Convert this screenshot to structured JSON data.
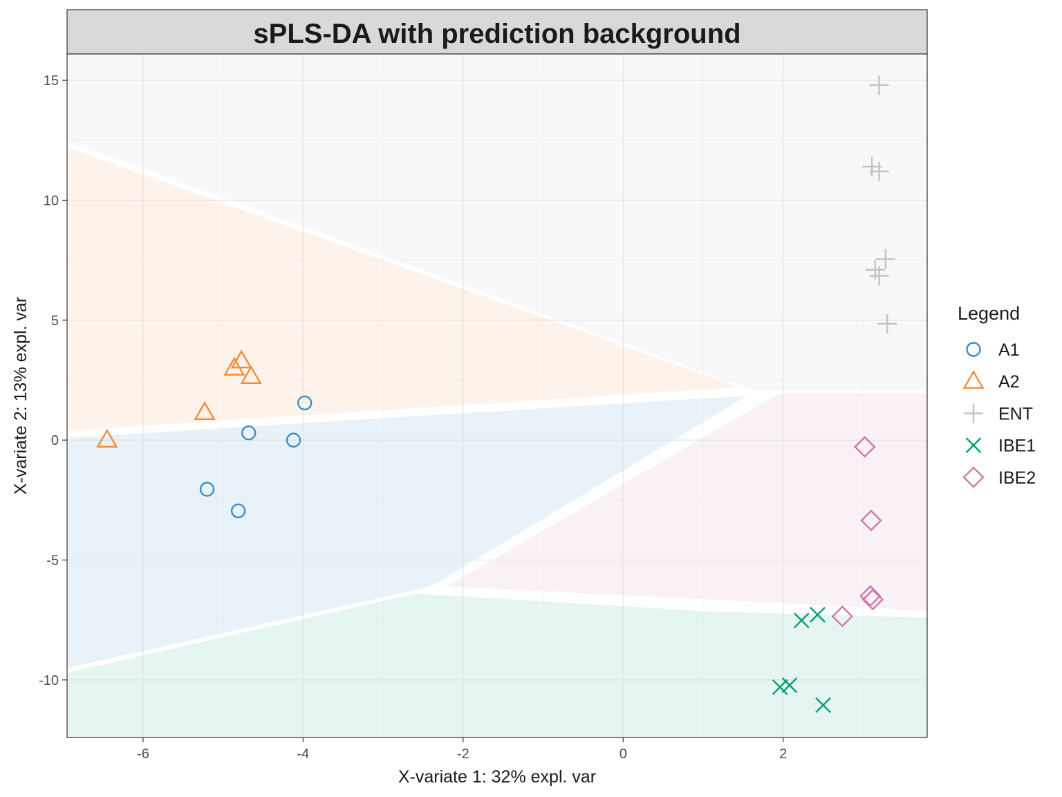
{
  "chart_data": {
    "type": "scatter",
    "title": "sPLS-DA with prediction background",
    "xlabel": "X-variate 1: 32% expl. var",
    "ylabel": "X-variate 2: 13% expl. var",
    "xlim": [
      -6.95,
      3.8
    ],
    "ylim": [
      -12.4,
      16.1
    ],
    "xticks": [
      -6,
      -4,
      -2,
      0,
      2
    ],
    "yticks": [
      -10,
      -5,
      0,
      5,
      10,
      15
    ],
    "grid": true,
    "legend": {
      "title": "Legend",
      "position": "right"
    },
    "series": [
      {
        "name": "A1",
        "shape": "circle",
        "color": "#388ECC",
        "bg": "#E9F1F9",
        "points": [
          [
            -3.98,
            1.55
          ],
          [
            -4.12,
            0.0
          ],
          [
            -4.68,
            0.3
          ],
          [
            -5.2,
            -2.05
          ],
          [
            -4.81,
            -2.95
          ]
        ]
      },
      {
        "name": "A2",
        "shape": "triangle",
        "color": "#F68B33",
        "bg": "#FEF3EA",
        "points": [
          [
            -4.77,
            3.3
          ],
          [
            -4.86,
            3.0
          ],
          [
            -4.65,
            2.65
          ],
          [
            -5.23,
            1.15
          ],
          [
            -6.45,
            0.0
          ]
        ]
      },
      {
        "name": "ENT",
        "shape": "plus",
        "color": "#C2C2C2",
        "bg": "#F8F8F8",
        "points": [
          [
            3.2,
            14.8
          ],
          [
            3.11,
            11.4
          ],
          [
            3.2,
            11.2
          ],
          [
            3.28,
            7.55
          ],
          [
            3.15,
            7.1
          ],
          [
            3.2,
            6.85
          ],
          [
            3.3,
            4.85
          ]
        ]
      },
      {
        "name": "IBE1",
        "shape": "cross",
        "color": "#009E73",
        "bg": "#E5F5F1",
        "points": [
          [
            2.43,
            -7.28
          ],
          [
            2.23,
            -7.52
          ],
          [
            2.08,
            -10.22
          ],
          [
            1.96,
            -10.3
          ],
          [
            2.5,
            -11.05
          ]
        ]
      },
      {
        "name": "IBE2",
        "shape": "diamond",
        "color": "#CC79A7",
        "bg": "#F9F1F6",
        "points": [
          [
            3.02,
            -0.28
          ],
          [
            3.1,
            -3.35
          ],
          [
            3.09,
            -6.5
          ],
          [
            3.12,
            -6.65
          ],
          [
            2.74,
            -7.35
          ]
        ]
      }
    ],
    "background_regions": [
      {
        "class": "ENT",
        "polygon": [
          [
            -6.95,
            16.1
          ],
          [
            3.8,
            16.1
          ],
          [
            3.8,
            2.1
          ],
          [
            1.6,
            2.1
          ],
          [
            -6.95,
            12.5
          ]
        ]
      },
      {
        "class": "A2",
        "polygon": [
          [
            -6.95,
            12.2
          ],
          [
            1.45,
            2.2
          ],
          [
            -6.95,
            0.4
          ]
        ]
      },
      {
        "class": "A1",
        "polygon": [
          [
            -6.95,
            0.1
          ],
          [
            1.55,
            1.85
          ],
          [
            -2.4,
            -6.1
          ],
          [
            -6.95,
            -9.5
          ]
        ]
      },
      {
        "class": "IBE2",
        "polygon": [
          [
            1.95,
            1.95
          ],
          [
            3.8,
            1.95
          ],
          [
            3.8,
            -7.1
          ],
          [
            -2.2,
            -6.1
          ]
        ]
      },
      {
        "class": "IBE1",
        "polygon": [
          [
            -6.95,
            -9.7
          ],
          [
            -2.6,
            -6.4
          ],
          [
            1.1,
            -7.15
          ],
          [
            3.8,
            -7.4
          ],
          [
            3.8,
            -12.4
          ],
          [
            -6.95,
            -12.4
          ]
        ]
      }
    ]
  }
}
